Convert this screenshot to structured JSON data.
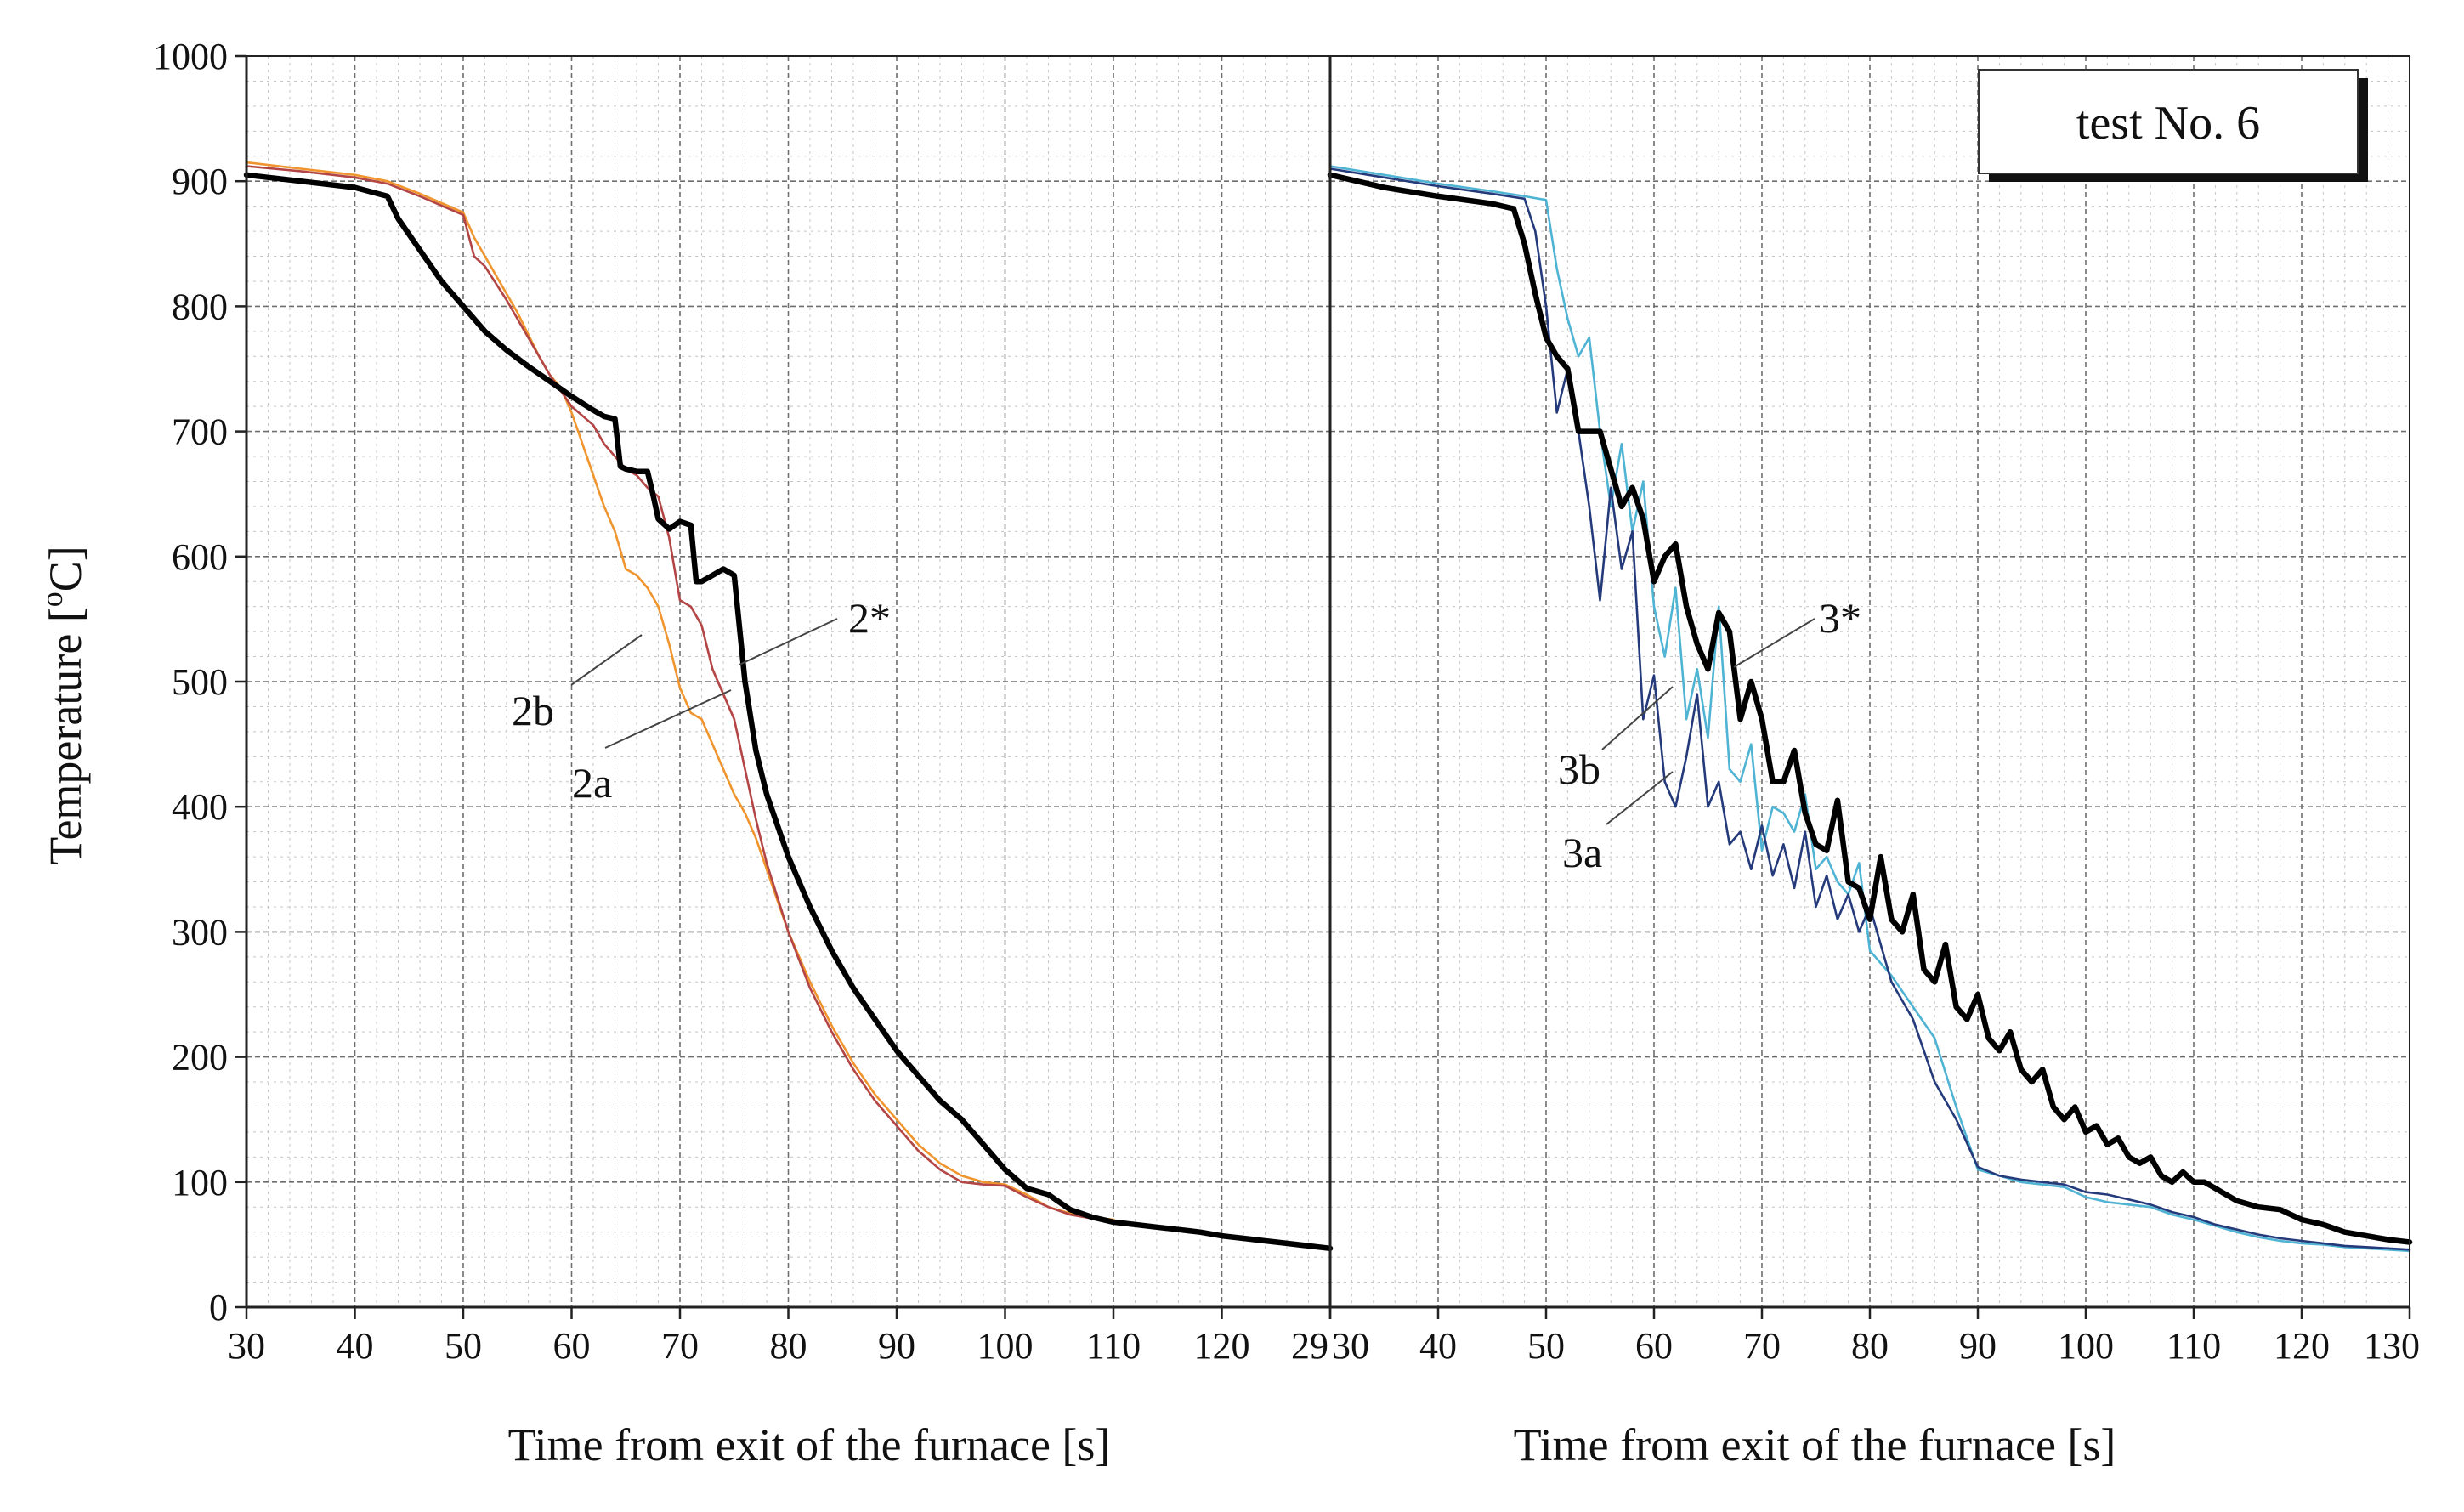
{
  "chart_data": [
    {
      "type": "line",
      "panel": "left",
      "xlabel": "Time from exit of the furnace [s]",
      "ylabel": "Temperature [oC]",
      "ylabel_parts": [
        "Temperature [",
        "o",
        "C]"
      ],
      "xlim": [
        30,
        130
      ],
      "ylim": [
        0,
        1000
      ],
      "x_ticks": [
        "30",
        "40",
        "50",
        "60",
        "70",
        "80",
        "90",
        "100",
        "110",
        "120",
        "29"
      ],
      "y_ticks": [
        "0",
        "100",
        "200",
        "300",
        "400",
        "500",
        "600",
        "700",
        "800",
        "900",
        "1000"
      ],
      "grid": true,
      "series": [
        {
          "name": "2b",
          "color": "#f0952e",
          "weight": "thin",
          "x": [
            30,
            35,
            40,
            43,
            46,
            50,
            51,
            53,
            55,
            57,
            58,
            59,
            60,
            61,
            62,
            63,
            64,
            64.5,
            65,
            66,
            67,
            68,
            69,
            70,
            71,
            72,
            73,
            74,
            75,
            76,
            77,
            78,
            80,
            82,
            84,
            86,
            88,
            90,
            92,
            94,
            96,
            98,
            100,
            102,
            104,
            106,
            108,
            110
          ],
          "y": [
            915,
            910,
            905,
            900,
            890,
            875,
            855,
            825,
            795,
            760,
            745,
            735,
            715,
            690,
            665,
            640,
            620,
            605,
            590,
            585,
            575,
            560,
            530,
            495,
            475,
            470,
            450,
            430,
            410,
            395,
            375,
            350,
            300,
            260,
            225,
            195,
            170,
            150,
            130,
            115,
            105,
            100,
            98,
            90,
            80,
            75,
            72,
            70
          ]
        },
        {
          "name": "2a",
          "color": "#b34545",
          "weight": "thin",
          "x": [
            30,
            35,
            40,
            43,
            46,
            50,
            51,
            52,
            54,
            56,
            58,
            60,
            62,
            63,
            64,
            65,
            66,
            67,
            68,
            69,
            70,
            71,
            72,
            73,
            74,
            75,
            76,
            77,
            78,
            80,
            82,
            84,
            86,
            88,
            90,
            92,
            94,
            96,
            98,
            100,
            102,
            104,
            106,
            108,
            110
          ],
          "y": [
            912,
            908,
            903,
            898,
            888,
            873,
            840,
            832,
            805,
            775,
            745,
            720,
            705,
            690,
            680,
            670,
            665,
            655,
            648,
            615,
            565,
            560,
            545,
            510,
            490,
            470,
            430,
            390,
            355,
            300,
            255,
            220,
            190,
            165,
            145,
            125,
            110,
            100,
            98,
            97,
            88,
            80,
            74,
            71,
            69
          ]
        },
        {
          "name": "2*",
          "color": "#000000",
          "weight": "thick",
          "x": [
            30,
            35,
            40,
            43,
            44,
            46,
            48,
            50,
            52,
            54,
            56,
            58,
            60,
            62,
            63,
            64,
            64.5,
            65,
            66,
            67,
            67.5,
            68,
            69,
            70,
            71,
            71.5,
            72,
            73,
            74,
            75,
            76,
            77,
            78,
            80,
            82,
            84,
            86,
            88,
            90,
            92,
            94,
            96,
            98,
            100,
            102,
            104,
            106,
            108,
            110,
            112,
            114,
            116,
            118,
            120,
            122,
            124,
            126,
            128,
            130
          ],
          "y": [
            905,
            900,
            895,
            888,
            870,
            845,
            820,
            800,
            780,
            765,
            752,
            740,
            728,
            717,
            712,
            710,
            672,
            670,
            668,
            668,
            650,
            630,
            622,
            628,
            625,
            580,
            580,
            585,
            590,
            585,
            500,
            445,
            410,
            360,
            320,
            285,
            255,
            230,
            205,
            185,
            165,
            150,
            130,
            110,
            95,
            90,
            78,
            72,
            68,
            66,
            64,
            62,
            60,
            57,
            55,
            53,
            51,
            49,
            47
          ]
        }
      ],
      "annotations": [
        "2b",
        "2a",
        "2*"
      ]
    },
    {
      "type": "line",
      "panel": "right",
      "xlabel": "Time from exit of the furnace [s]",
      "xlim": [
        30,
        130
      ],
      "ylim": [
        0,
        1000
      ],
      "x_ticks": [
        "30",
        "40",
        "50",
        "60",
        "70",
        "80",
        "90",
        "100",
        "110",
        "120",
        "130"
      ],
      "grid": true,
      "series": [
        {
          "name": "3b",
          "color": "#4fb3d4",
          "weight": "thin",
          "x": [
            30,
            35,
            40,
            45,
            48,
            50,
            51,
            52,
            53,
            54,
            55,
            56,
            57,
            58,
            59,
            60,
            61,
            62,
            63,
            64,
            65,
            66,
            67,
            68,
            69,
            70,
            71,
            72,
            73,
            74,
            75,
            76,
            77,
            78,
            79,
            80,
            82,
            84,
            86,
            88,
            90,
            92,
            94,
            96,
            98,
            100,
            102,
            104,
            106,
            108,
            110,
            112,
            114,
            116,
            118,
            120,
            122,
            124,
            126,
            128,
            130
          ],
          "y": [
            912,
            905,
            898,
            892,
            888,
            885,
            830,
            790,
            760,
            775,
            700,
            640,
            690,
            620,
            660,
            560,
            520,
            575,
            470,
            510,
            455,
            560,
            430,
            420,
            450,
            365,
            400,
            395,
            380,
            410,
            350,
            360,
            340,
            330,
            355,
            285,
            265,
            240,
            215,
            160,
            110,
            105,
            100,
            98,
            96,
            88,
            84,
            82,
            80,
            74,
            70,
            65,
            60,
            56,
            53,
            51,
            50,
            48,
            47,
            46,
            45
          ]
        },
        {
          "name": "3a",
          "color": "#243a7a",
          "weight": "thin",
          "x": [
            30,
            35,
            40,
            45,
            48,
            49,
            50,
            51,
            52,
            53,
            54,
            55,
            56,
            57,
            58,
            59,
            60,
            61,
            62,
            63,
            64,
            65,
            66,
            67,
            68,
            69,
            70,
            71,
            72,
            73,
            74,
            75,
            76,
            77,
            78,
            79,
            80,
            82,
            84,
            86,
            88,
            90,
            92,
            94,
            96,
            98,
            100,
            102,
            104,
            106,
            108,
            110,
            112,
            114,
            116,
            118,
            120,
            122,
            124,
            126,
            128,
            130
          ],
          "y": [
            910,
            903,
            896,
            890,
            886,
            860,
            800,
            715,
            750,
            700,
            640,
            565,
            655,
            590,
            620,
            470,
            505,
            420,
            400,
            440,
            490,
            400,
            420,
            370,
            380,
            350,
            385,
            345,
            370,
            335,
            380,
            320,
            345,
            310,
            330,
            300,
            320,
            260,
            230,
            180,
            150,
            112,
            105,
            102,
            100,
            98,
            92,
            90,
            86,
            82,
            76,
            72,
            66,
            62,
            58,
            55,
            53,
            51,
            49,
            48,
            47,
            46
          ]
        },
        {
          "name": "3*",
          "color": "#000000",
          "weight": "thick",
          "x": [
            30,
            35,
            40,
            45,
            47,
            48,
            49,
            50,
            51,
            52,
            53,
            54,
            55,
            56,
            57,
            58,
            59,
            60,
            61,
            62,
            63,
            64,
            65,
            66,
            67,
            68,
            69,
            70,
            71,
            72,
            73,
            74,
            75,
            76,
            77,
            78,
            79,
            80,
            81,
            82,
            83,
            84,
            85,
            86,
            87,
            88,
            89,
            90,
            91,
            92,
            93,
            94,
            95,
            96,
            97,
            98,
            99,
            100,
            101,
            102,
            103,
            104,
            105,
            106,
            107,
            108,
            109,
            110,
            111,
            112,
            114,
            116,
            118,
            120,
            122,
            124,
            126,
            128,
            130
          ],
          "y": [
            905,
            895,
            888,
            882,
            878,
            850,
            810,
            775,
            760,
            750,
            700,
            700,
            700,
            670,
            640,
            655,
            630,
            580,
            600,
            610,
            560,
            530,
            510,
            555,
            540,
            470,
            500,
            470,
            420,
            420,
            445,
            395,
            370,
            365,
            405,
            340,
            335,
            310,
            360,
            310,
            300,
            330,
            270,
            260,
            290,
            240,
            230,
            250,
            215,
            205,
            220,
            190,
            180,
            190,
            160,
            150,
            160,
            140,
            145,
            130,
            135,
            120,
            115,
            120,
            105,
            100,
            108,
            100,
            100,
            95,
            85,
            80,
            78,
            70,
            66,
            60,
            57,
            54,
            52
          ]
        }
      ],
      "annotations": [
        "3b",
        "3a",
        "3*"
      ]
    }
  ],
  "legend": {
    "text": "test No. 6"
  }
}
